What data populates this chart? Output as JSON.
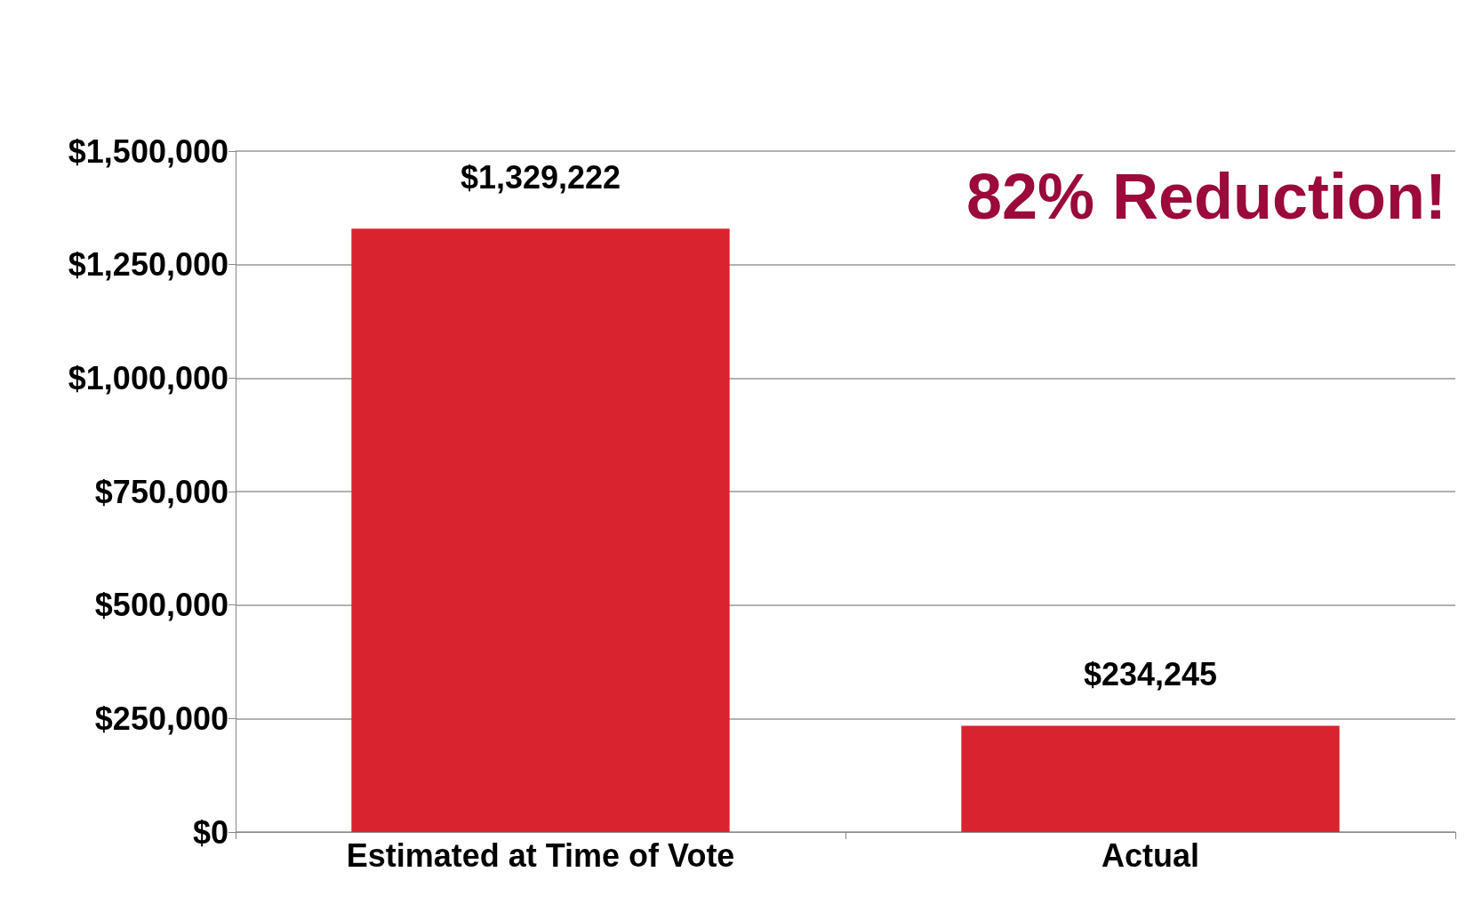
{
  "chart_data": {
    "type": "bar",
    "categories": [
      "Estimated at Time of Vote",
      "Actual"
    ],
    "values": [
      1329222,
      234245
    ],
    "value_labels": [
      "$1,329,222",
      "$234,245"
    ],
    "color": "#d9232e",
    "ylim": [
      0,
      1500000
    ],
    "yticks": [
      {
        "value": 0,
        "label": "$0"
      },
      {
        "value": 250000,
        "label": "$250,000"
      },
      {
        "value": 500000,
        "label": "$500,000"
      },
      {
        "value": 750000,
        "label": "$750,000"
      },
      {
        "value": 1000000,
        "label": "$1,000,000"
      },
      {
        "value": 1250000,
        "label": "$1,250,000"
      },
      {
        "value": 1500000,
        "label": "$1,500,000"
      }
    ],
    "grid": "y",
    "annotations": [
      "82% Reduction!"
    ]
  }
}
